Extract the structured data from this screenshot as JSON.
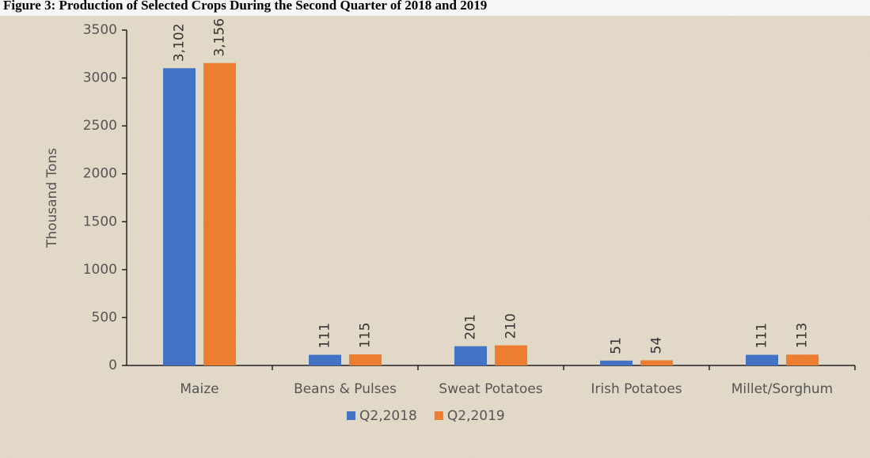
{
  "chart_data": {
    "type": "bar",
    "title": "Figure 3: Production of Selected Crops During the Second Quarter of 2018 and 2019",
    "y_label": "Thousand Tons",
    "categories": [
      "Maize",
      "Beans & Pulses",
      "Sweat Potatoes",
      "Irish Potatoes",
      "Millet/Sorghum"
    ],
    "series": [
      {
        "name": "Q2,2018",
        "color": "#4472c4",
        "values": [
          3102,
          111,
          201,
          51,
          111
        ],
        "value_labels": [
          "3,102",
          "111",
          "201",
          "51",
          "111"
        ]
      },
      {
        "name": "Q2,2019",
        "color": "#ed7d31",
        "values": [
          3156,
          115,
          210,
          54,
          113
        ],
        "value_labels": [
          "3,156",
          "115",
          "210",
          "54",
          "113"
        ]
      }
    ],
    "ylim": [
      0,
      3500
    ],
    "yticks": [
      0,
      500,
      1000,
      1500,
      2000,
      2500,
      3000,
      3500
    ],
    "legend": "bottom"
  }
}
